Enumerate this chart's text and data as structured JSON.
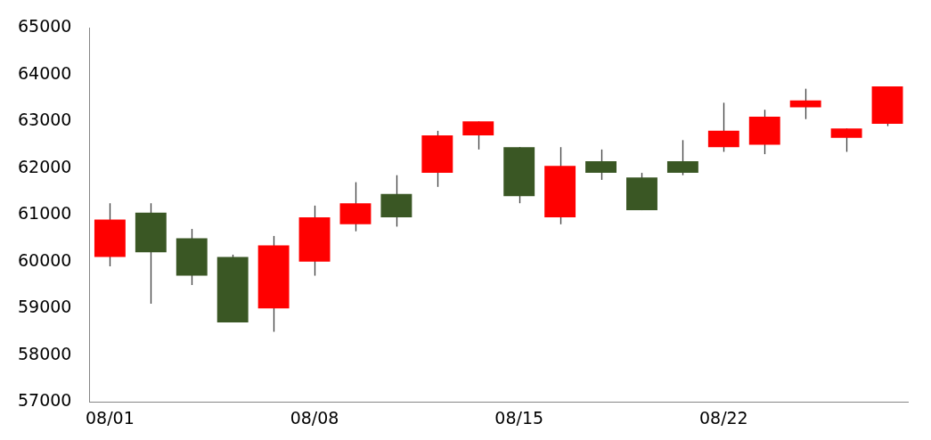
{
  "chart_data": {
    "type": "candlestick",
    "categories": [
      "08/01",
      null,
      null,
      null,
      null,
      "08/08",
      null,
      null,
      null,
      null,
      "08/15",
      null,
      null,
      null,
      null,
      "08/22",
      null,
      null,
      null,
      null
    ],
    "ohlc": [
      [
        60100,
        61250,
        59900,
        60900
      ],
      [
        61050,
        61250,
        59100,
        60200
      ],
      [
        60500,
        60700,
        59500,
        59700
      ],
      [
        60100,
        60150,
        58700,
        58700
      ],
      [
        59000,
        60550,
        58500,
        60350
      ],
      [
        60000,
        61200,
        59700,
        60950
      ],
      [
        60800,
        61700,
        60650,
        61250
      ],
      [
        61450,
        61850,
        60750,
        60950
      ],
      [
        61900,
        62800,
        61600,
        62700
      ],
      [
        62700,
        63000,
        62400,
        63000
      ],
      [
        62450,
        62450,
        61250,
        61400
      ],
      [
        60950,
        62450,
        60800,
        62050
      ],
      [
        62150,
        62400,
        61750,
        61900
      ],
      [
        61800,
        61900,
        61100,
        61100
      ],
      [
        62150,
        62600,
        61850,
        61900
      ],
      [
        62450,
        63400,
        62350,
        62800
      ],
      [
        62500,
        63250,
        62300,
        63100
      ],
      [
        63300,
        63700,
        63050,
        63450
      ],
      [
        62650,
        62850,
        62350,
        62850
      ],
      [
        62950,
        63750,
        62900,
        63750
      ]
    ],
    "colors": [
      "#ff0000",
      "#3a5724",
      "#3a5724",
      "#3a5724",
      "#ff0000",
      "#ff0000",
      "#ff0000",
      "#3a5724",
      "#ff0000",
      "#ff0000",
      "#3a5724",
      "#ff0000",
      "#3a5724",
      "#3a5724",
      "#3a5724",
      "#ff0000",
      "#ff0000",
      "#ff0000",
      "#ff0000",
      "#ff0000"
    ],
    "ylim": [
      57000,
      65000
    ],
    "yticks": [
      57000,
      58000,
      59000,
      60000,
      61000,
      62000,
      63000,
      64000,
      65000
    ],
    "grid": false,
    "legend": false
  }
}
